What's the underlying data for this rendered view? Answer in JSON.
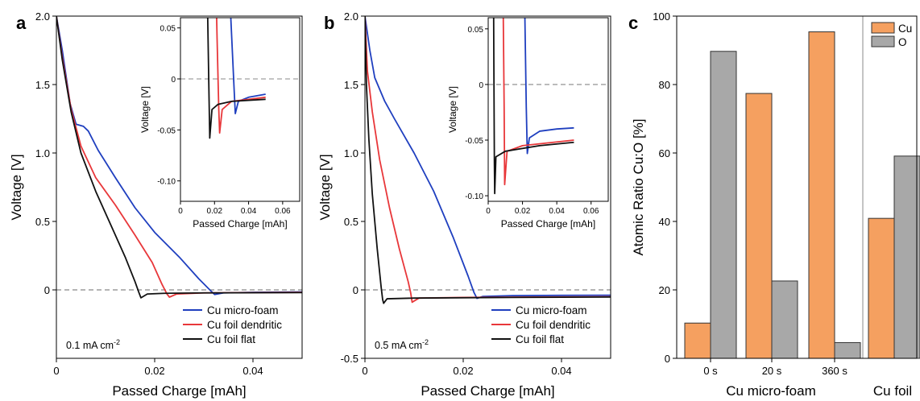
{
  "chart_data": [
    {
      "panel": "a",
      "type": "line",
      "xlabel": "Passed Charge [mAh]",
      "ylabel": "Voltage [V]",
      "xlim": [
        0,
        0.05
      ],
      "ylim": [
        -0.5,
        2.0
      ],
      "xticks": [
        "0",
        "0.02",
        "0.04"
      ],
      "yticks": [
        "0",
        "0.5",
        "1.0",
        "1.5",
        "2.0"
      ],
      "reference_line": 0,
      "annotation": {
        "text": "0.1 mA cm",
        "sup": "-2"
      },
      "legend_position": "bottom-right",
      "series": [
        {
          "name": "Cu micro-foam",
          "color": "#1f3fbf",
          "points": [
            [
              0,
              2.0
            ],
            [
              0.0012,
              1.75
            ],
            [
              0.0028,
              1.36
            ],
            [
              0.004,
              1.21
            ],
            [
              0.0055,
              1.195
            ],
            [
              0.0065,
              1.16
            ],
            [
              0.0085,
              1.02
            ],
            [
              0.012,
              0.82
            ],
            [
              0.016,
              0.6
            ],
            [
              0.02,
              0.42
            ],
            [
              0.025,
              0.24
            ],
            [
              0.029,
              0.08
            ],
            [
              0.0315,
              -0.01
            ],
            [
              0.0322,
              -0.034
            ],
            [
              0.034,
              -0.022
            ],
            [
              0.04,
              -0.018
            ],
            [
              0.05,
              -0.015
            ]
          ]
        },
        {
          "name": "Cu foil dendritic",
          "color": "#e8373a",
          "points": [
            [
              0,
              2.0
            ],
            [
              0.0012,
              1.7
            ],
            [
              0.003,
              1.32
            ],
            [
              0.005,
              1.05
            ],
            [
              0.008,
              0.82
            ],
            [
              0.012,
              0.62
            ],
            [
              0.016,
              0.4
            ],
            [
              0.0195,
              0.2
            ],
            [
              0.0215,
              0.04
            ],
            [
              0.0225,
              -0.03
            ],
            [
              0.023,
              -0.053
            ],
            [
              0.0245,
              -0.03
            ],
            [
              0.03,
              -0.022
            ],
            [
              0.04,
              -0.02
            ],
            [
              0.05,
              -0.018
            ]
          ]
        },
        {
          "name": "Cu foil flat",
          "color": "#111111",
          "points": [
            [
              0,
              2.0
            ],
            [
              0.0012,
              1.68
            ],
            [
              0.003,
              1.3
            ],
            [
              0.005,
              1.0
            ],
            [
              0.008,
              0.72
            ],
            [
              0.011,
              0.48
            ],
            [
              0.014,
              0.24
            ],
            [
              0.016,
              0.06
            ],
            [
              0.0168,
              -0.02
            ],
            [
              0.0172,
              -0.058
            ],
            [
              0.0185,
              -0.03
            ],
            [
              0.022,
              -0.025
            ],
            [
              0.03,
              -0.022
            ],
            [
              0.05,
              -0.02
            ]
          ]
        }
      ],
      "inset": {
        "xlabel": "Passed Charge [mAh]",
        "ylabel": "Voltage [V]",
        "xlim": [
          0,
          0.07
        ],
        "ylim": [
          -0.12,
          0.06
        ],
        "xticks": [
          "0",
          "0.02",
          "0.04",
          "0.06"
        ],
        "yticks": [
          "-0.10",
          "-0.05",
          "0",
          "0.05"
        ]
      }
    },
    {
      "panel": "b",
      "type": "line",
      "xlabel": "Passed Charge [mAh]",
      "ylabel": "Voltage [V]",
      "xlim": [
        0,
        0.05
      ],
      "ylim": [
        -0.5,
        2.0
      ],
      "xticks": [
        "0",
        "0.02",
        "0.04"
      ],
      "yticks": [
        "-0.5",
        "0",
        "0.5",
        "1.0",
        "1.5",
        "2.0"
      ],
      "reference_line": 0,
      "annotation": {
        "text": "0.5 mA cm",
        "sup": "-2"
      },
      "legend_position": "bottom-right",
      "series": [
        {
          "name": "Cu micro-foam",
          "color": "#1f3fbf",
          "points": [
            [
              0,
              2.0
            ],
            [
              0.001,
              1.75
            ],
            [
              0.002,
              1.55
            ],
            [
              0.004,
              1.38
            ],
            [
              0.006,
              1.25
            ],
            [
              0.01,
              1.0
            ],
            [
              0.014,
              0.72
            ],
            [
              0.018,
              0.38
            ],
            [
              0.021,
              0.1
            ],
            [
              0.0222,
              -0.02
            ],
            [
              0.0228,
              -0.062
            ],
            [
              0.024,
              -0.048
            ],
            [
              0.03,
              -0.042
            ],
            [
              0.04,
              -0.04
            ],
            [
              0.05,
              -0.039
            ]
          ]
        },
        {
          "name": "Cu foil dendritic",
          "color": "#e8373a",
          "points": [
            [
              0,
              2.0
            ],
            [
              0.0005,
              1.6
            ],
            [
              0.0015,
              1.3
            ],
            [
              0.003,
              0.95
            ],
            [
              0.005,
              0.6
            ],
            [
              0.007,
              0.3
            ],
            [
              0.0088,
              0.06
            ],
            [
              0.0093,
              -0.02
            ],
            [
              0.0096,
              -0.09
            ],
            [
              0.011,
              -0.06
            ],
            [
              0.02,
              -0.055
            ],
            [
              0.05,
              -0.05
            ]
          ]
        },
        {
          "name": "Cu foil flat",
          "color": "#111111",
          "points": [
            [
              0,
              2.0
            ],
            [
              0.0003,
              1.5
            ],
            [
              0.0008,
              1.1
            ],
            [
              0.0015,
              0.7
            ],
            [
              0.0025,
              0.3
            ],
            [
              0.0033,
              0.02
            ],
            [
              0.0036,
              -0.07
            ],
            [
              0.0038,
              -0.098
            ],
            [
              0.0045,
              -0.065
            ],
            [
              0.01,
              -0.06
            ],
            [
              0.03,
              -0.055
            ],
            [
              0.05,
              -0.052
            ]
          ]
        }
      ],
      "inset": {
        "xlabel": "Passed Charge [mAh]",
        "ylabel": "Voltage [V]",
        "xlim": [
          0,
          0.07
        ],
        "ylim": [
          -0.105,
          0.06
        ],
        "xticks": [
          "0",
          "0.02",
          "0.04",
          "0.06"
        ],
        "yticks": [
          "-0.10",
          "-0.05",
          "0",
          "0.05"
        ]
      }
    },
    {
      "panel": "c",
      "type": "bar",
      "ylabel": "Atomic Ratio Cu:O [%]",
      "ylim": [
        0,
        100
      ],
      "yticks": [
        "0",
        "20",
        "40",
        "60",
        "80",
        "100"
      ],
      "categories": [
        "0 s",
        "20 s",
        "360 s",
        ""
      ],
      "group_labels": [
        "Cu micro-foam",
        "Cu foil"
      ],
      "legend_position": "top-right",
      "series": [
        {
          "name": "Cu",
          "color": "#f5a060",
          "values": [
            10.3,
            77.4,
            95.4,
            40.9
          ]
        },
        {
          "name": "O",
          "color": "#a8a8a8",
          "values": [
            89.7,
            22.6,
            4.6,
            59.1
          ]
        }
      ]
    }
  ]
}
